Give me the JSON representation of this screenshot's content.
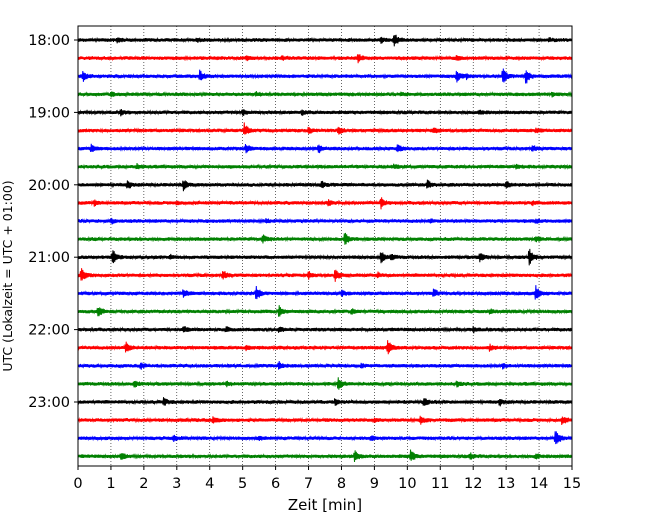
{
  "chart_data": {
    "type": "line",
    "subtype": "helicorder",
    "title": "",
    "xlabel": "Zeit  [min]",
    "ylabel": "UTC (Lokalzeit = UTC + 01:00)",
    "xlim": [
      0,
      15
    ],
    "x_ticks": [
      "0",
      "1",
      "2",
      "3",
      "4",
      "5",
      "6",
      "7",
      "8",
      "9",
      "10",
      "11",
      "12",
      "13",
      "14",
      "15"
    ],
    "y_ticks": [
      "18:00",
      "19:00",
      "20:00",
      "21:00",
      "22:00",
      "23:00"
    ],
    "grid": "vertical dotted at each minute",
    "legend": "none",
    "row_colors": [
      "#000000",
      "#ff0000",
      "#0000ff",
      "#008000"
    ],
    "traces": [
      {
        "events": [
          [
            1.2,
            0.25
          ],
          [
            3.6,
            0.2
          ],
          [
            9.6,
            0.75
          ],
          [
            9.2,
            0.3
          ],
          [
            14.3,
            0.2
          ]
        ]
      },
      {
        "events": [
          [
            5.1,
            0.2
          ],
          [
            6.2,
            0.2
          ],
          [
            8.5,
            0.4
          ],
          [
            11.5,
            0.2
          ]
        ]
      },
      {
        "events": [
          [
            0.15,
            0.55
          ],
          [
            3.7,
            0.65
          ],
          [
            11.5,
            0.7
          ],
          [
            12.9,
            0.9
          ],
          [
            13.6,
            0.8
          ],
          [
            11.8,
            0.2
          ]
        ]
      },
      {
        "events": [
          [
            1.0,
            0.2
          ],
          [
            5.4,
            0.2
          ],
          [
            14.4,
            0.2
          ],
          [
            9.8,
            0.15
          ]
        ]
      },
      {
        "events": [
          [
            1.3,
            0.25
          ],
          [
            5.0,
            0.3
          ],
          [
            6.8,
            0.25
          ],
          [
            12.2,
            0.2
          ]
        ]
      },
      {
        "events": [
          [
            5.05,
            0.7
          ],
          [
            7.0,
            0.3
          ],
          [
            7.9,
            0.45
          ],
          [
            10.8,
            0.3
          ],
          [
            13.9,
            0.25
          ]
        ]
      },
      {
        "events": [
          [
            0.4,
            0.45
          ],
          [
            5.1,
            0.55
          ],
          [
            7.3,
            0.5
          ],
          [
            9.7,
            0.4
          ],
          [
            13.8,
            0.3
          ]
        ]
      },
      {
        "events": [
          [
            1.8,
            0.25
          ],
          [
            9.6,
            0.2
          ],
          [
            13.3,
            0.2
          ]
        ]
      },
      {
        "events": [
          [
            1.5,
            0.45
          ],
          [
            3.2,
            0.55
          ],
          [
            7.4,
            0.3
          ],
          [
            10.6,
            0.55
          ],
          [
            13.0,
            0.4
          ]
        ]
      },
      {
        "events": [
          [
            0.5,
            0.25
          ],
          [
            3.0,
            0.2
          ],
          [
            7.6,
            0.25
          ],
          [
            9.2,
            0.55
          ],
          [
            13.8,
            0.2
          ]
        ]
      },
      {
        "events": [
          [
            1.0,
            0.3
          ],
          [
            5.7,
            0.2
          ],
          [
            10.7,
            0.2
          ],
          [
            13.9,
            0.2
          ]
        ]
      },
      {
        "events": [
          [
            5.6,
            0.45
          ],
          [
            8.1,
            0.75
          ],
          [
            13.9,
            0.3
          ]
        ]
      },
      {
        "events": [
          [
            1.05,
            0.95
          ],
          [
            2.8,
            0.2
          ],
          [
            9.2,
            0.6
          ],
          [
            12.2,
            0.55
          ],
          [
            13.7,
            0.95
          ],
          [
            9.5,
            0.3
          ]
        ]
      },
      {
        "events": [
          [
            0.1,
            0.95
          ],
          [
            4.4,
            0.5
          ],
          [
            7.0,
            0.4
          ],
          [
            7.8,
            0.65
          ],
          [
            9.1,
            0.25
          ]
        ]
      },
      {
        "events": [
          [
            3.2,
            0.45
          ],
          [
            5.4,
            0.85
          ],
          [
            8.0,
            0.3
          ],
          [
            10.8,
            0.45
          ],
          [
            13.9,
            0.85
          ]
        ]
      },
      {
        "events": [
          [
            0.6,
            0.65
          ],
          [
            6.1,
            0.55
          ],
          [
            8.3,
            0.25
          ],
          [
            12.5,
            0.2
          ]
        ]
      },
      {
        "events": [
          [
            3.2,
            0.3
          ],
          [
            4.5,
            0.25
          ],
          [
            6.1,
            0.25
          ],
          [
            12.0,
            0.3
          ]
        ]
      },
      {
        "events": [
          [
            1.45,
            0.7
          ],
          [
            5.1,
            0.2
          ],
          [
            9.4,
            0.85
          ],
          [
            12.5,
            0.3
          ]
        ]
      },
      {
        "events": [
          [
            1.9,
            0.3
          ],
          [
            6.1,
            0.4
          ],
          [
            8.6,
            0.2
          ],
          [
            12.9,
            0.25
          ]
        ]
      },
      {
        "events": [
          [
            1.7,
            0.35
          ],
          [
            4.5,
            0.2
          ],
          [
            7.9,
            0.65
          ],
          [
            11.5,
            0.3
          ]
        ]
      },
      {
        "events": [
          [
            2.6,
            0.4
          ],
          [
            7.8,
            0.3
          ],
          [
            10.5,
            0.45
          ],
          [
            12.8,
            0.35
          ]
        ]
      },
      {
        "events": [
          [
            4.1,
            0.35
          ],
          [
            9.0,
            0.2
          ],
          [
            10.4,
            0.5
          ],
          [
            14.7,
            0.45
          ]
        ]
      },
      {
        "events": [
          [
            2.9,
            0.3
          ],
          [
            5.5,
            0.2
          ],
          [
            8.9,
            0.2
          ],
          [
            14.5,
            0.95
          ]
        ]
      },
      {
        "events": [
          [
            1.3,
            0.45
          ],
          [
            8.4,
            0.65
          ],
          [
            10.1,
            0.7
          ],
          [
            11.9,
            0.35
          ],
          [
            13.9,
            0.25
          ]
        ]
      }
    ]
  }
}
